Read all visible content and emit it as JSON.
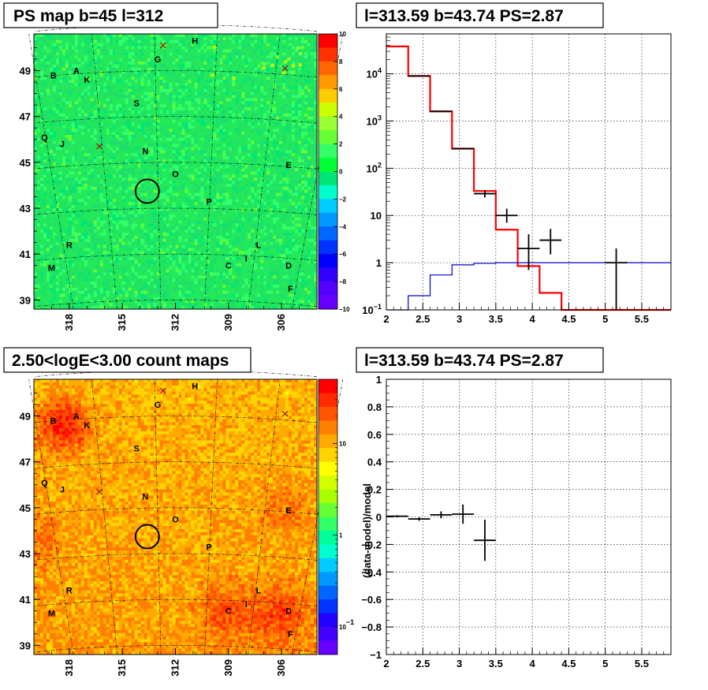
{
  "chart_data": [
    {
      "id": "ps_map",
      "type": "heatmap",
      "title": "PS map b=45 l=312",
      "x_ticks": [
        "318",
        "315",
        "312",
        "309",
        "306"
      ],
      "y_ticks": [
        "49",
        "47",
        "45",
        "43",
        "41",
        "39"
      ],
      "xlim": [
        320,
        304
      ],
      "ylim": [
        38.6,
        50.6
      ],
      "x_reversed": true,
      "colorbar": {
        "ticks": [
          "10",
          "8",
          "6",
          "4",
          "2",
          "0",
          "−2",
          "−4",
          "−6",
          "−8",
          "−10"
        ],
        "range": [
          -10,
          10
        ],
        "colors": [
          "#ff0000",
          "#ff3300",
          "#ff6600",
          "#ff9900",
          "#ffcc00",
          "#ccff00",
          "#99ff33",
          "#66ff33",
          "#33ff66",
          "#00ff33",
          "#00e676",
          "#00ffcc",
          "#00ccff",
          "#0099ff",
          "#0066ff",
          "#0033ff",
          "#0000ff",
          "#3300ff",
          "#5500ff",
          "#6600ff"
        ]
      },
      "base_color": "#22e85a",
      "markers": [
        {
          "label": "H",
          "l": 310.9,
          "b": 50.3
        },
        {
          "label": "G",
          "l": 313.0,
          "b": 49.5
        },
        {
          "label": "B",
          "l": 318.9,
          "b": 48.8
        },
        {
          "label": "A",
          "l": 317.6,
          "b": 49.0
        },
        {
          "label": "K",
          "l": 317.0,
          "b": 48.6
        },
        {
          "label": "S",
          "l": 314.2,
          "b": 47.6
        },
        {
          "label": "Q",
          "l": 319.4,
          "b": 46.1
        },
        {
          "label": "J",
          "l": 318.4,
          "b": 45.8
        },
        {
          "label": "N",
          "l": 313.7,
          "b": 45.5
        },
        {
          "label": "E",
          "l": 305.6,
          "b": 44.9
        },
        {
          "label": "O",
          "l": 312.0,
          "b": 44.5
        },
        {
          "label": "P",
          "l": 310.1,
          "b": 43.3
        },
        {
          "label": "R",
          "l": 318.0,
          "b": 41.4
        },
        {
          "label": "L",
          "l": 307.3,
          "b": 41.4
        },
        {
          "label": "I",
          "l": 308.0,
          "b": 40.8
        },
        {
          "label": "C",
          "l": 309.0,
          "b": 40.5
        },
        {
          "label": "M",
          "l": 319.0,
          "b": 40.4
        },
        {
          "label": "D",
          "l": 305.6,
          "b": 40.5
        },
        {
          "label": "F",
          "l": 305.5,
          "b": 39.5
        }
      ],
      "crosses": [
        {
          "l": 312.7,
          "b": 50.1
        },
        {
          "l": 305.8,
          "b": 49.1
        },
        {
          "l": 316.3,
          "b": 45.7
        }
      ],
      "circle": {
        "l": 313.59,
        "b": 43.74
      }
    },
    {
      "id": "spectrum_log",
      "type": "line",
      "title": "l=313.59 b=43.74 PS=2.87",
      "xlim": [
        2,
        5.9
      ],
      "ylim": [
        0.1,
        70000
      ],
      "log_y": true,
      "x_ticks": [
        "2",
        "2.5",
        "3",
        "3.5",
        "4",
        "4.5",
        "5",
        "5.5"
      ],
      "x_tick_values": [
        2,
        2.5,
        3,
        3.5,
        4,
        4.5,
        5,
        5.5
      ],
      "y_ticks": [
        {
          "value": 0.1,
          "base": "10",
          "exp": "−1"
        },
        {
          "value": 1,
          "text": "1"
        },
        {
          "value": 10,
          "text": "10"
        },
        {
          "value": 100,
          "base": "10",
          "exp": "2"
        },
        {
          "value": 1000,
          "base": "10",
          "exp": "3"
        },
        {
          "value": 10000,
          "base": "10",
          "exp": "4"
        }
      ],
      "grid": true,
      "series": [
        {
          "role": "model",
          "color": "#ff0000",
          "bin_edges": [
            2.0,
            2.3,
            2.6,
            2.9,
            3.2,
            3.5,
            3.8,
            4.1,
            4.4,
            5.9
          ],
          "values": [
            38000,
            9000,
            1600,
            260,
            33,
            5,
            0.85,
            0.23,
            0.1
          ]
        },
        {
          "role": "background",
          "color": "#0000cc",
          "bin_edges": [
            2.0,
            2.3,
            2.6,
            2.9,
            3.2,
            3.5,
            3.8,
            4.1,
            4.4,
            5.9
          ],
          "values": [
            0.1,
            0.2,
            0.55,
            0.9,
            0.97,
            1.0,
            1.0,
            1.0,
            1.0
          ]
        },
        {
          "role": "data",
          "color": "#000000",
          "points": [
            {
              "x": 2.45,
              "y": 9000,
              "xerr": 0.15,
              "ylo": 8900,
              "yhi": 9100
            },
            {
              "x": 2.75,
              "y": 1600,
              "xerr": 0.15,
              "ylo": 1560,
              "yhi": 1640
            },
            {
              "x": 3.05,
              "y": 260,
              "xerr": 0.15,
              "ylo": 250,
              "yhi": 270
            },
            {
              "x": 3.35,
              "y": 29,
              "xerr": 0.15,
              "ylo": 24,
              "yhi": 34
            },
            {
              "x": 3.65,
              "y": 10,
              "xerr": 0.15,
              "ylo": 7,
              "yhi": 14
            },
            {
              "x": 3.95,
              "y": 2,
              "xerr": 0.15,
              "ylo": 0.7,
              "yhi": 4
            },
            {
              "x": 4.25,
              "y": 3,
              "xerr": 0.15,
              "ylo": 1.5,
              "yhi": 5.2
            },
            {
              "x": 5.15,
              "y": 1,
              "xerr": 0.15,
              "ylo": 0.1,
              "yhi": 2
            }
          ]
        }
      ]
    },
    {
      "id": "count_map",
      "type": "heatmap",
      "title": "2.50<logE<3.00 count maps",
      "x_ticks": [
        "318",
        "315",
        "312",
        "309",
        "306"
      ],
      "y_ticks": [
        "49",
        "47",
        "45",
        "43",
        "41",
        "39"
      ],
      "xlim": [
        320,
        304
      ],
      "ylim": [
        38.6,
        50.6
      ],
      "x_reversed": true,
      "colorbar": {
        "ticks": [
          {
            "value": 10,
            "text": "10"
          },
          {
            "value": 1,
            "text": "1"
          },
          {
            "value": 0.1,
            "base": "10",
            "exp": "−1"
          }
        ],
        "log": true,
        "range": [
          0.05,
          50
        ],
        "colors": [
          "#ff0000",
          "#ff2a00",
          "#ff5500",
          "#ff7f00",
          "#ffaa00",
          "#ffd400",
          "#ffff00",
          "#d4ff00",
          "#aaff00",
          "#66ff33",
          "#33ff66",
          "#00ff99",
          "#00ffcc",
          "#00ccff",
          "#0099ff",
          "#0066ff",
          "#0033ff",
          "#2200ff",
          "#4400ff",
          "#6600ff"
        ]
      },
      "base_color": "#ffb000",
      "hotspots": [
        {
          "l": 318.3,
          "b": 48.6,
          "strength": 1.0
        },
        {
          "l": 306.0,
          "b": 40.3,
          "strength": 0.7
        },
        {
          "l": 309.0,
          "b": 40.4,
          "strength": 0.55
        },
        {
          "l": 305.8,
          "b": 45.0,
          "strength": 0.35
        },
        {
          "l": 319.8,
          "b": 43.5,
          "strength": 0.35
        }
      ],
      "markers": [
        {
          "label": "H",
          "l": 310.9,
          "b": 50.3
        },
        {
          "label": "G",
          "l": 313.0,
          "b": 49.5
        },
        {
          "label": "B",
          "l": 318.9,
          "b": 48.8
        },
        {
          "label": "A",
          "l": 317.6,
          "b": 49.0
        },
        {
          "label": "K",
          "l": 317.0,
          "b": 48.6
        },
        {
          "label": "S",
          "l": 314.2,
          "b": 47.6
        },
        {
          "label": "Q",
          "l": 319.4,
          "b": 46.1
        },
        {
          "label": "J",
          "l": 318.4,
          "b": 45.8
        },
        {
          "label": "N",
          "l": 313.7,
          "b": 45.5
        },
        {
          "label": "E",
          "l": 305.6,
          "b": 44.9
        },
        {
          "label": "O",
          "l": 312.0,
          "b": 44.5
        },
        {
          "label": "P",
          "l": 310.1,
          "b": 43.3
        },
        {
          "label": "R",
          "l": 318.0,
          "b": 41.4
        },
        {
          "label": "L",
          "l": 307.3,
          "b": 41.4
        },
        {
          "label": "I",
          "l": 308.0,
          "b": 40.8
        },
        {
          "label": "C",
          "l": 309.0,
          "b": 40.5
        },
        {
          "label": "M",
          "l": 319.0,
          "b": 40.4
        },
        {
          "label": "D",
          "l": 305.6,
          "b": 40.5
        },
        {
          "label": "F",
          "l": 305.5,
          "b": 39.5
        }
      ],
      "crosses": [
        {
          "l": 312.7,
          "b": 50.1
        },
        {
          "l": 305.8,
          "b": 49.1
        },
        {
          "l": 316.3,
          "b": 45.7
        }
      ],
      "circle": {
        "l": 313.59,
        "b": 43.74
      }
    },
    {
      "id": "residuals",
      "type": "scatter",
      "title": "l=313.59 b=43.74 PS=2.87",
      "ylabel": "(data-model)/model",
      "xlim": [
        2,
        5.9
      ],
      "ylim": [
        -1,
        1
      ],
      "x_ticks": [
        "2",
        "2.5",
        "3",
        "3.5",
        "4",
        "4.5",
        "5",
        "5.5"
      ],
      "x_tick_values": [
        2,
        2.5,
        3,
        3.5,
        4,
        4.5,
        5,
        5.5
      ],
      "y_ticks": [
        "1",
        "0.8",
        "0.6",
        "0.4",
        "0.2",
        "0",
        "−0.2",
        "−0.4",
        "−0.6",
        "−0.8",
        "−1"
      ],
      "y_tick_values": [
        1,
        0.8,
        0.6,
        0.4,
        0.2,
        0,
        -0.2,
        -0.4,
        -0.6,
        -0.8,
        -1
      ],
      "grid": true,
      "points": [
        {
          "x": 2.15,
          "y": 0.005,
          "xerr": 0.15,
          "ylo": -0.003,
          "yhi": 0.012
        },
        {
          "x": 2.45,
          "y": -0.015,
          "xerr": 0.15,
          "ylo": -0.028,
          "yhi": -0.003
        },
        {
          "x": 2.75,
          "y": 0.015,
          "xerr": 0.15,
          "ylo": -0.01,
          "yhi": 0.04
        },
        {
          "x": 3.05,
          "y": 0.02,
          "xerr": 0.15,
          "ylo": -0.05,
          "yhi": 0.09
        },
        {
          "x": 3.35,
          "y": -0.17,
          "xerr": 0.15,
          "ylo": -0.32,
          "yhi": -0.02
        }
      ]
    }
  ]
}
